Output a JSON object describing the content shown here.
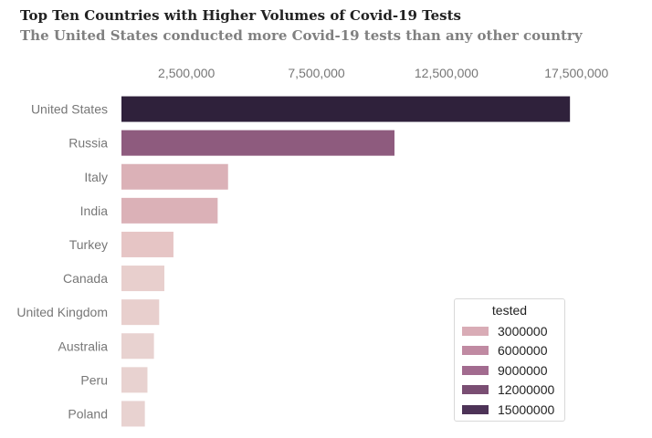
{
  "title": "Top Ten Countries with Higher Volumes of Covid-19 Tests",
  "subtitle": "The United States conducted more Covid-19 tests than any other country",
  "chart_data": {
    "type": "bar",
    "orientation": "horizontal",
    "categories": [
      "United States",
      "Russia",
      "Italy",
      "India",
      "Turkey",
      "Canada",
      "United Kingdom",
      "Australia",
      "Peru",
      "Poland"
    ],
    "values": [
      17250000,
      10500000,
      4100000,
      3700000,
      2000000,
      1650000,
      1450000,
      1250000,
      1000000,
      900000
    ],
    "colors": [
      "#2f213b",
      "#8e5b7e",
      "#dbb1b7",
      "#dbb1b7",
      "#e6c5c5",
      "#e8cfcd",
      "#e8cfcd",
      "#e8d2d0",
      "#e8d2d0",
      "#e8d2d0"
    ],
    "xticks": [
      2500000,
      7500000,
      12500000,
      17500000
    ],
    "xtick_labels": [
      "2,500,000",
      "7,500,000",
      "12,500,000",
      "17,500,000"
    ],
    "xlim": [
      0,
      19000000
    ],
    "xaxis_position": "top",
    "grid": false,
    "legend": {
      "title": "tested",
      "placement": "bottom-right",
      "entries": [
        {
          "label": "3000000",
          "color": "#d9acb6"
        },
        {
          "label": "6000000",
          "color": "#c08aa2"
        },
        {
          "label": "9000000",
          "color": "#a26b8f"
        },
        {
          "label": "12000000",
          "color": "#7a4e73"
        },
        {
          "label": "15000000",
          "color": "#4d3357"
        }
      ]
    }
  }
}
